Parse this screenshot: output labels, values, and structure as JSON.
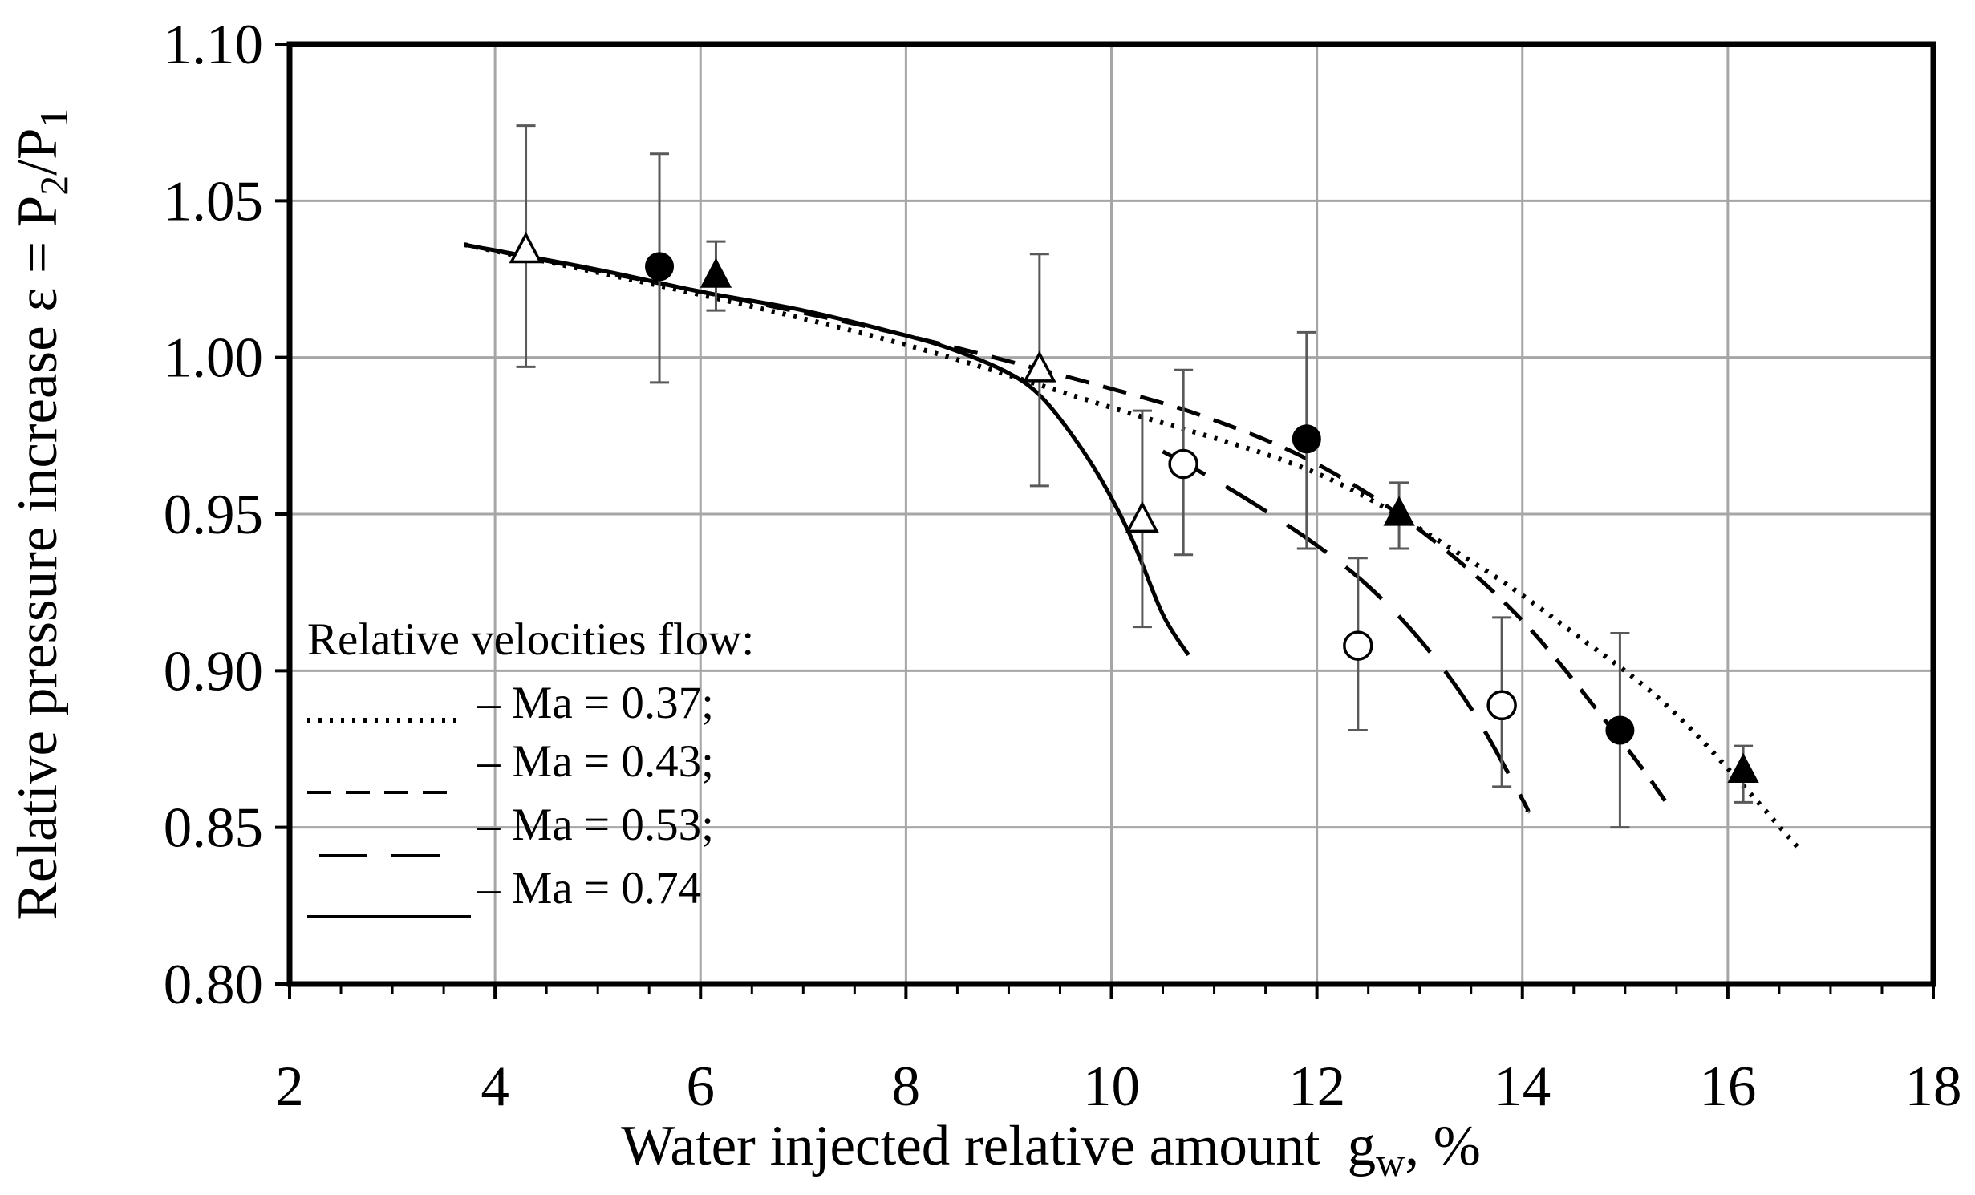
{
  "chart_data": {
    "type": "scatter",
    "title": "",
    "xlabel": "Water injected relative amount",
    "xlabel_var": "g",
    "xlabel_sub": "w",
    "xlabel_unit": ", %",
    "ylabel_text": "Relative pressure increase ε = P",
    "ylabel_sub1": "2",
    "ylabel_slash": "/P",
    "ylabel_sub2": "1",
    "xlim": [
      2,
      18
    ],
    "ylim": [
      0.8,
      1.1
    ],
    "x_ticks": [
      2,
      4,
      6,
      8,
      10,
      12,
      14,
      16,
      18
    ],
    "x_tick_labels": [
      "2",
      "4",
      "6",
      "8",
      "10",
      "12",
      "14",
      "16",
      "18"
    ],
    "y_ticks": [
      0.8,
      0.85,
      0.9,
      0.95,
      1.0,
      1.05,
      1.1
    ],
    "y_tick_labels": [
      "0.80",
      "0.85",
      "0.90",
      "0.95",
      "1.00",
      "1.05",
      "1.10"
    ],
    "grid": true,
    "legend": {
      "title": "Relative velocities flow:",
      "position": "left-bottom",
      "entries": [
        {
          "label": "– Ma = 0.37;",
          "style": "dotted"
        },
        {
          "label": "– Ma = 0.43;",
          "style": "dashed"
        },
        {
          "label": "– Ma = 0.53;",
          "style": "longdash"
        },
        {
          "label": "– Ma = 0.74",
          "style": "solid"
        }
      ]
    },
    "series": [
      {
        "name": "Ma = 0.37",
        "line_style": "dotted",
        "marker": "triangle-filled",
        "points": [
          {
            "x": 6.15,
            "y": 1.026,
            "err_low": 1.015,
            "err_high": 1.037
          },
          {
            "x": 12.8,
            "y": 0.95,
            "err_low": 0.939,
            "err_high": 0.96
          },
          {
            "x": 16.15,
            "y": 0.868,
            "err_low": 0.858,
            "err_high": 0.876
          }
        ],
        "curve": [
          [
            3.7,
            1.036
          ],
          [
            6.0,
            1.02
          ],
          [
            8.0,
            1.004
          ],
          [
            10.0,
            0.984
          ],
          [
            12.0,
            0.963
          ],
          [
            13.5,
            0.935
          ],
          [
            14.5,
            0.912
          ],
          [
            15.5,
            0.886
          ],
          [
            16.7,
            0.843
          ]
        ]
      },
      {
        "name": "Ma = 0.43",
        "line_style": "dashed",
        "marker": "circle-filled",
        "points": [
          {
            "x": 5.6,
            "y": 1.029,
            "err_low": 0.992,
            "err_high": 1.065
          },
          {
            "x": 11.9,
            "y": 0.974,
            "err_low": 0.939,
            "err_high": 1.008
          },
          {
            "x": 14.95,
            "y": 0.881,
            "err_low": 0.85,
            "err_high": 0.912
          }
        ],
        "curve": [
          [
            3.7,
            1.036
          ],
          [
            6.0,
            1.021
          ],
          [
            8.0,
            1.007
          ],
          [
            10.0,
            0.99
          ],
          [
            11.0,
            0.98
          ],
          [
            12.0,
            0.966
          ],
          [
            13.0,
            0.945
          ],
          [
            14.0,
            0.916
          ],
          [
            15.0,
            0.876
          ],
          [
            15.4,
            0.858
          ]
        ]
      },
      {
        "name": "Ma = 0.53",
        "line_style": "longdash",
        "marker": "circle-open",
        "points": [
          {
            "x": 10.7,
            "y": 0.966,
            "err_low": 0.937,
            "err_high": 0.996
          },
          {
            "x": 12.4,
            "y": 0.908,
            "err_low": 0.881,
            "err_high": 0.936
          },
          {
            "x": 13.8,
            "y": 0.889,
            "err_low": 0.863,
            "err_high": 0.917
          }
        ],
        "curve": [
          [
            10.5,
            0.97
          ],
          [
            11.0,
            0.961
          ],
          [
            11.5,
            0.951
          ],
          [
            12.0,
            0.94
          ],
          [
            12.5,
            0.927
          ],
          [
            13.0,
            0.91
          ],
          [
            13.5,
            0.888
          ],
          [
            14.0,
            0.859
          ],
          [
            14.05,
            0.855
          ]
        ]
      },
      {
        "name": "Ma = 0.74",
        "line_style": "solid",
        "marker": "triangle-open",
        "points": [
          {
            "x": 4.3,
            "y": 1.034,
            "err_low": 0.997,
            "err_high": 1.074
          },
          {
            "x": 9.3,
            "y": 0.996,
            "err_low": 0.959,
            "err_high": 1.033
          },
          {
            "x": 10.3,
            "y": 0.948,
            "err_low": 0.914,
            "err_high": 0.983
          }
        ],
        "curve": [
          [
            3.7,
            1.036
          ],
          [
            5.0,
            1.028
          ],
          [
            6.0,
            1.021
          ],
          [
            7.0,
            1.015
          ],
          [
            8.0,
            1.007
          ],
          [
            8.5,
            1.002
          ],
          [
            9.0,
            0.995
          ],
          [
            9.3,
            0.988
          ],
          [
            9.6,
            0.976
          ],
          [
            9.9,
            0.961
          ],
          [
            10.2,
            0.942
          ],
          [
            10.5,
            0.918
          ],
          [
            10.75,
            0.905
          ]
        ]
      }
    ]
  }
}
